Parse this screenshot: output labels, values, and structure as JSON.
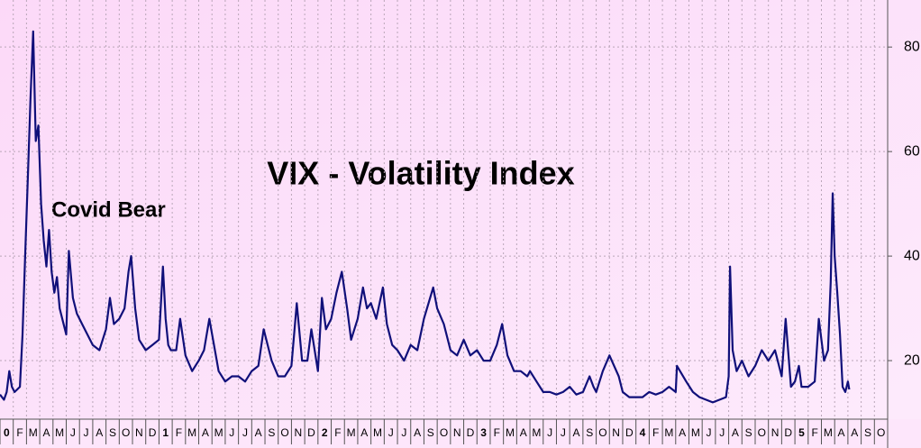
{
  "chart_data": {
    "type": "line",
    "title": "VIX - Volatility Index",
    "annotation": "Covid Bear",
    "color": "#10107a",
    "grid": true,
    "y_axis_side": "right",
    "x": [
      0,
      0.3,
      0.5,
      0.7,
      0.9,
      1.1,
      1.5,
      1.7,
      1.9,
      2.1,
      2.3,
      2.5,
      2.7,
      2.9,
      3.1,
      3.3,
      3.5,
      3.7,
      3.9,
      4.1,
      4.3,
      4.5,
      4.7,
      5.0,
      5.2,
      5.5,
      5.8,
      6.2,
      6.6,
      7.0,
      7.5,
      8.0,
      8.3,
      8.6,
      9.0,
      9.4,
      9.7,
      9.9,
      10.2,
      10.5,
      11.0,
      11.5,
      12.0,
      12.3,
      12.5,
      12.7,
      12.9,
      13.3,
      13.6,
      14.0,
      14.5,
      15.0,
      15.4,
      15.8,
      16.5,
      17.0,
      17.5,
      18.0,
      18.5,
      19.0,
      19.5,
      19.9,
      20.5,
      21.0,
      21.5,
      22.0,
      22.4,
      22.8,
      23.2,
      23.5,
      24.0,
      24.3,
      24.6,
      25.0,
      25.4,
      25.8,
      26.2,
      26.5,
      27.0,
      27.4,
      27.7,
      28.0,
      28.4,
      28.9,
      29.2,
      29.6,
      30.0,
      30.5,
      31.0,
      31.5,
      32.0,
      32.7,
      33.0,
      33.5,
      34.0,
      34.5,
      35.0,
      35.5,
      36.0,
      36.5,
      37.0,
      37.5,
      37.9,
      38.3,
      38.8,
      39.3,
      39.8,
      40.0,
      40.5,
      41.0,
      41.5,
      42.0,
      42.5,
      43.0,
      43.5,
      44.0,
      44.5,
      44.8,
      45.0,
      45.5,
      46.0,
      46.7,
      47.0,
      47.5,
      48.0,
      48.5,
      49.0,
      49.5,
      50.0,
      50.5,
      51.0,
      51.1,
      51.8,
      52.3,
      52.8,
      53.3,
      53.8,
      54.3,
      54.8,
      55.0,
      55.1,
      55.3,
      55.6,
      56.0,
      56.5,
      57.0,
      57.5,
      58.0,
      58.5,
      59.0,
      59.3,
      59.7,
      60.0,
      60.3,
      60.5,
      61.0,
      61.5,
      61.8,
      62.2,
      62.5,
      62.7,
      62.85,
      63.0,
      63.2,
      63.4,
      63.6,
      63.8,
      64.0,
      64.1
    ],
    "values": [
      13.5,
      12.5,
      14,
      18,
      15,
      14,
      15,
      25,
      40,
      55,
      70,
      83,
      62,
      65,
      50,
      43,
      38,
      45,
      37,
      33,
      36,
      30,
      28,
      25,
      41,
      32,
      29,
      27,
      25,
      23,
      22,
      26,
      32,
      27,
      28,
      30,
      37,
      40,
      30,
      24,
      22,
      23,
      24,
      38,
      28,
      23,
      22,
      22,
      28,
      21,
      18,
      20,
      22,
      28,
      18,
      16,
      17,
      17,
      16,
      18,
      19,
      26,
      20,
      17,
      17,
      19,
      31,
      20,
      20,
      26,
      18,
      32,
      26,
      28,
      33,
      37,
      30,
      24,
      28,
      34,
      30,
      31,
      28,
      34,
      27,
      23,
      22,
      20,
      23,
      22,
      28,
      34,
      30,
      27,
      22,
      21,
      24,
      21,
      22,
      20,
      20,
      23,
      27,
      21,
      18,
      18,
      17,
      18,
      16,
      14,
      14,
      13.5,
      14,
      15,
      13.5,
      14,
      17,
      15,
      14,
      18,
      21,
      17,
      14,
      13,
      13,
      13,
      14,
      13.5,
      14,
      15,
      14,
      19,
      16,
      14,
      13,
      12.5,
      12,
      12.5,
      13,
      17,
      38,
      22,
      18,
      20,
      17,
      19,
      22,
      20,
      22,
      17,
      28,
      15,
      16,
      19,
      15,
      15,
      16,
      28,
      20,
      22,
      35,
      52,
      40,
      33,
      25,
      15,
      14,
      16,
      14.5
    ],
    "xlim": [
      0,
      67
    ],
    "xticks": [
      0,
      {
        "value": 1,
        "label": "F"
      },
      {
        "value": 2,
        "label": "M"
      },
      {
        "value": 3,
        "label": "A"
      },
      {
        "value": 4,
        "label": "M"
      },
      {
        "value": 5,
        "label": "J"
      },
      {
        "value": 6,
        "label": "J"
      },
      {
        "value": 7,
        "label": "A"
      },
      {
        "value": 8,
        "label": "S"
      },
      {
        "value": 9,
        "label": "O"
      },
      {
        "value": 10,
        "label": "N"
      },
      {
        "value": 11,
        "label": "D"
      },
      {
        "value": 12,
        "label": "1"
      },
      {
        "value": 13,
        "label": "F"
      },
      {
        "value": 14,
        "label": "M"
      },
      {
        "value": 15,
        "label": "A"
      },
      {
        "value": 16,
        "label": "M"
      },
      {
        "value": 17,
        "label": "J"
      },
      {
        "value": 18,
        "label": "J"
      },
      {
        "value": 19,
        "label": "A"
      },
      {
        "value": 20,
        "label": "S"
      },
      {
        "value": 21,
        "label": "O"
      },
      {
        "value": 22,
        "label": "N"
      },
      {
        "value": 23,
        "label": "D"
      },
      {
        "value": 24,
        "label": "2"
      },
      {
        "value": 25,
        "label": "F"
      },
      {
        "value": 26,
        "label": "M"
      },
      {
        "value": 27,
        "label": "A"
      },
      {
        "value": 28,
        "label": "M"
      },
      {
        "value": 29,
        "label": "J"
      },
      {
        "value": 30,
        "label": "J"
      },
      {
        "value": 31,
        "label": "A"
      },
      {
        "value": 32,
        "label": "S"
      },
      {
        "value": 33,
        "label": "O"
      },
      {
        "value": 34,
        "label": "N"
      },
      {
        "value": 35,
        "label": "D"
      },
      {
        "value": 36,
        "label": "3"
      },
      {
        "value": 37,
        "label": "F"
      },
      {
        "value": 38,
        "label": "M"
      },
      {
        "value": 39,
        "label": "A"
      },
      {
        "value": 40,
        "label": "M"
      },
      {
        "value": 41,
        "label": "J"
      },
      {
        "value": 42,
        "label": "J"
      },
      {
        "value": 43,
        "label": "A"
      },
      {
        "value": 44,
        "label": "S"
      },
      {
        "value": 45,
        "label": "O"
      },
      {
        "value": 46,
        "label": "N"
      },
      {
        "value": 47,
        "label": "D"
      },
      {
        "value": 48,
        "label": "4"
      },
      {
        "value": 49,
        "label": "F"
      },
      {
        "value": 50,
        "label": "M"
      },
      {
        "value": 51,
        "label": "A"
      },
      {
        "value": 52,
        "label": "M"
      },
      {
        "value": 53,
        "label": "J"
      },
      {
        "value": 54,
        "label": "J"
      },
      {
        "value": 55,
        "label": "A"
      },
      {
        "value": 56,
        "label": "S"
      },
      {
        "value": 57,
        "label": "O"
      },
      {
        "value": 58,
        "label": "N"
      },
      {
        "value": 59,
        "label": "D"
      },
      {
        "value": 60,
        "label": "5"
      },
      {
        "value": 61,
        "label": "F"
      },
      {
        "value": 62,
        "label": "M"
      },
      {
        "value": 63,
        "label": "A"
      },
      {
        "value": 64,
        "label": "A"
      },
      {
        "value": 65,
        "label": "S"
      },
      {
        "value": 66,
        "label": "O"
      }
    ],
    "ylim": [
      8.8,
      89
    ],
    "yticks": [
      20,
      40,
      60,
      80
    ]
  }
}
